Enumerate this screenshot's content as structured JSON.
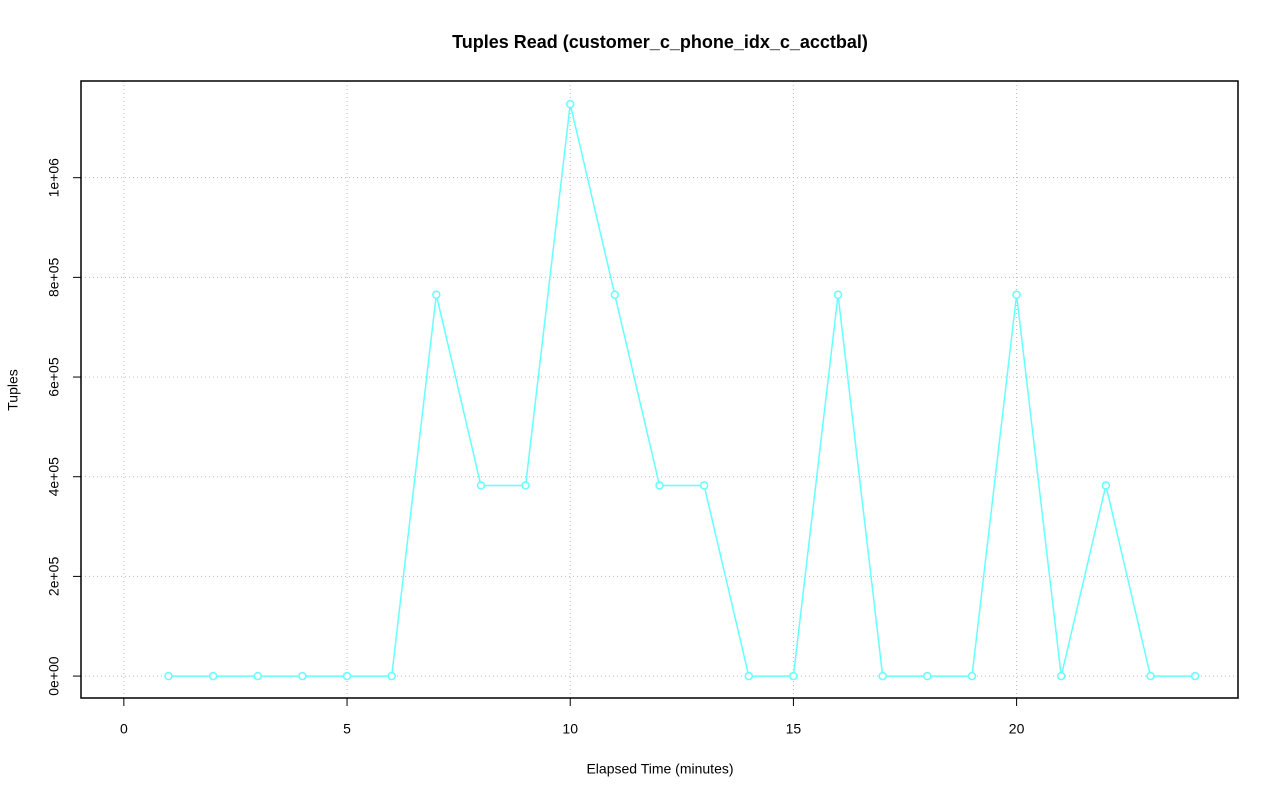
{
  "chart_data": {
    "type": "line",
    "title": "Tuples Read (customer_c_phone_idx_c_acctbal)",
    "x_label": "Elapsed Time (minutes)",
    "y_label": "Tuples",
    "x": [
      1,
      2,
      3,
      4,
      5,
      6,
      7,
      8,
      9,
      10,
      11,
      12,
      13,
      14,
      15,
      16,
      17,
      18,
      19,
      20,
      21,
      22,
      23,
      24
    ],
    "series": [
      {
        "name": "customer_c_phone_idx_c_acctbal",
        "color": "#66ffff",
        "values": [
          0,
          0,
          0,
          0,
          0,
          0,
          765000,
          382500,
          382500,
          1147500,
          765000,
          382500,
          382500,
          0,
          0,
          765000,
          0,
          0,
          0,
          765000,
          0,
          382500,
          0,
          0
        ]
      }
    ],
    "xlim": [
      -0.96,
      24.96
    ],
    "xticks": [
      0,
      5,
      10,
      15,
      20
    ],
    "ylim": [
      -44000,
      1194000
    ],
    "yticks": [
      {
        "value": 0,
        "label": "0e+00"
      },
      {
        "value": 200000,
        "label": "2e+05"
      },
      {
        "value": 400000,
        "label": "4e+05"
      },
      {
        "value": 600000,
        "label": "6e+05"
      },
      {
        "value": 800000,
        "label": "8e+05"
      },
      {
        "value": 1000000,
        "label": "1e+06"
      }
    ],
    "grid": true
  }
}
